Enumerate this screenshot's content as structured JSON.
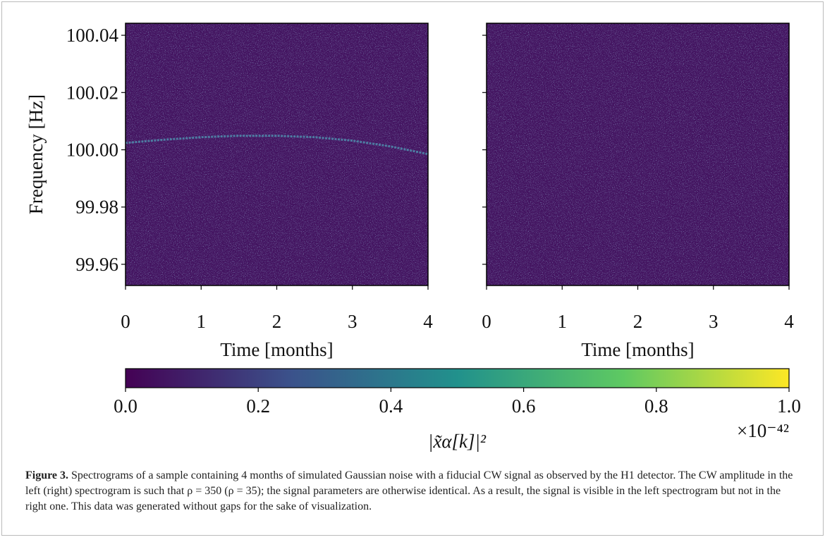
{
  "chart_data": [
    {
      "type": "heatmap",
      "xlabel": "Time [months]",
      "ylabel": "Frequency [Hz]",
      "xlim": [
        0,
        4
      ],
      "xticks": [
        0,
        1,
        2,
        3,
        4
      ],
      "ylim": [
        99.9526,
        100.0442
      ],
      "yticks": [
        99.96,
        99.98,
        {
          "value": 100,
          "label": "100.00"
        },
        100.02,
        100.04
      ],
      "signal": {
        "x": [
          0,
          0.5,
          1,
          1.5,
          2,
          2.5,
          3,
          3.5,
          4
        ],
        "values": [
          100.0024,
          100.0035,
          100.0044,
          100.0049,
          100.0049,
          100.0044,
          100.0032,
          100.0012,
          99.9985
        ],
        "color": "#4f86a8"
      }
    },
    {
      "type": "heatmap",
      "xlabel": "Time [months]",
      "xlim": [
        0,
        4
      ],
      "xticks": [
        0,
        1,
        2,
        3,
        4
      ]
    }
  ],
  "colorbar": {
    "label": "|x̃α[k]|²",
    "offset_label": "×10⁻⁴²",
    "clim": [
      0,
      1
    ],
    "ticks": [
      {
        "value": 0,
        "label": "0.0"
      },
      0.2,
      0.4,
      0.6,
      0.8,
      {
        "value": 1,
        "label": "1.0"
      }
    ],
    "colormap": [
      "#440154",
      "#3b528b",
      "#21918c",
      "#5ec962",
      "#fde725"
    ]
  },
  "caption": {
    "label": "Figure 3.",
    "text": "Spectrograms of a sample containing 4 months of simulated Gaussian noise with a fiducial CW signal as observed by the H1 detector. The CW amplitude in the left (right) spectrogram is such that ρ = 350 (ρ = 35); the signal parameters are otherwise identical. As a result, the signal is visible in the left spectrogram but not in the right one. This data was generated without gaps for the sake of visualization."
  }
}
